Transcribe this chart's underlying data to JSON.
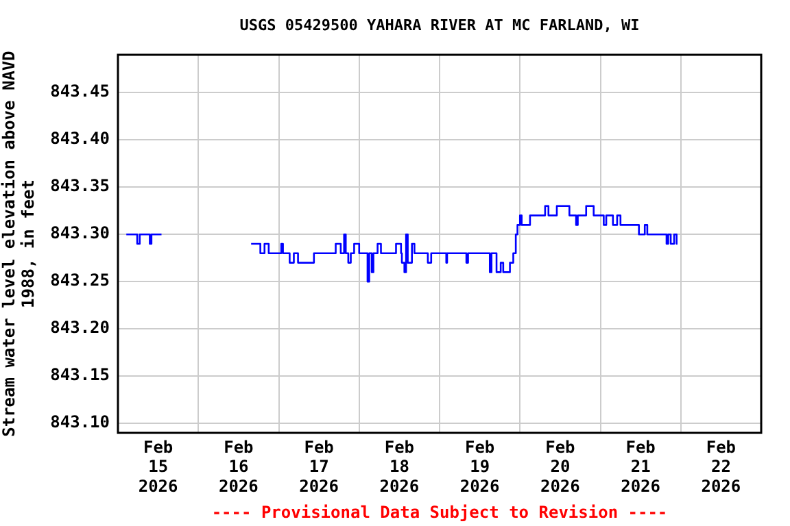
{
  "chart_data": {
    "type": "step",
    "title": "USGS 05429500 YAHARA RIVER AT MC FARLAND, WI",
    "ylabel": "Stream water level elevation above NAVD 1988, in feet",
    "annotations": [
      "---- Provisional Data Subject to Revision ----"
    ],
    "grid": true,
    "legend": false,
    "marker": "none",
    "xlim": [
      "2026-02-15T00:00",
      "2026-02-23T00:00"
    ],
    "xticks": [
      {
        "value": "2026-02-15T12:00",
        "label": "Feb\n15\n2026"
      },
      {
        "value": "2026-02-16T00:00",
        "label": null
      },
      {
        "value": "2026-02-16T12:00",
        "label": "Feb\n16\n2026"
      },
      {
        "value": "2026-02-17T00:00",
        "label": null
      },
      {
        "value": "2026-02-17T12:00",
        "label": "Feb\n17\n2026"
      },
      {
        "value": "2026-02-18T00:00",
        "label": null
      },
      {
        "value": "2026-02-18T12:00",
        "label": "Feb\n18\n2026"
      },
      {
        "value": "2026-02-19T00:00",
        "label": null
      },
      {
        "value": "2026-02-19T12:00",
        "label": "Feb\n19\n2026"
      },
      {
        "value": "2026-02-20T00:00",
        "label": null
      },
      {
        "value": "2026-02-20T12:00",
        "label": "Feb\n20\n2026"
      },
      {
        "value": "2026-02-21T00:00",
        "label": null
      },
      {
        "value": "2026-02-21T12:00",
        "label": "Feb\n21\n2026"
      },
      {
        "value": "2026-02-22T00:00",
        "label": null
      },
      {
        "value": "2026-02-22T12:00",
        "label": "Feb\n22\n2026"
      }
    ],
    "ylim": [
      843.09,
      843.49
    ],
    "yticks": [
      {
        "value": 843.1,
        "label": "843.10"
      },
      {
        "value": 843.15,
        "label": "843.15"
      },
      {
        "value": 843.2,
        "label": "843.20"
      },
      {
        "value": 843.25,
        "label": "843.25"
      },
      {
        "value": 843.3,
        "label": "843.30"
      },
      {
        "value": 843.35,
        "label": "843.35"
      },
      {
        "value": 843.4,
        "label": "843.40"
      },
      {
        "value": 843.45,
        "label": "843.45"
      }
    ],
    "series": [
      {
        "color": "#0000ff",
        "x": [
          "2026-02-15T02:30",
          "2026-02-15T05:45",
          "2026-02-15T06:30",
          "2026-02-15T09:30",
          "2026-02-15T10:00",
          "2026-02-15T13:00",
          "2026-02-16T00:00",
          "2026-02-16T15:45",
          "2026-02-16T18:30",
          "2026-02-16T19:45",
          "2026-02-16T21:00",
          "2026-02-17T00:45",
          "2026-02-17T01:15",
          "2026-02-17T03:15",
          "2026-02-17T04:30",
          "2026-02-17T05:45",
          "2026-02-17T10:30",
          "2026-02-17T17:00",
          "2026-02-17T18:30",
          "2026-02-17T19:30",
          "2026-02-17T20:00",
          "2026-02-17T20:45",
          "2026-02-17T21:30",
          "2026-02-17T22:30",
          "2026-02-18T00:00",
          "2026-02-18T02:30",
          "2026-02-18T03:00",
          "2026-02-18T03:45",
          "2026-02-18T04:15",
          "2026-02-18T05:30",
          "2026-02-18T06:30",
          "2026-02-18T11:00",
          "2026-02-18T12:30",
          "2026-02-18T12:45",
          "2026-02-18T13:30",
          "2026-02-18T14:00",
          "2026-02-18T14:30",
          "2026-02-18T15:45",
          "2026-02-18T16:30",
          "2026-02-18T20:30",
          "2026-02-18T21:30",
          "2026-02-19T02:00",
          "2026-02-19T02:15",
          "2026-02-19T08:00",
          "2026-02-19T08:30",
          "2026-02-19T15:00",
          "2026-02-19T15:30",
          "2026-02-19T17:00",
          "2026-02-19T18:15",
          "2026-02-19T19:00",
          "2026-02-19T21:00",
          "2026-02-19T22:00",
          "2026-02-19T22:45",
          "2026-02-19T23:15",
          "2026-02-20T00:00",
          "2026-02-20T00:30",
          "2026-02-20T03:00",
          "2026-02-20T07:30",
          "2026-02-20T08:30",
          "2026-02-20T11:00",
          "2026-02-20T14:45",
          "2026-02-20T16:45",
          "2026-02-20T17:15",
          "2026-02-20T19:45",
          "2026-02-20T22:00",
          "2026-02-21T01:00",
          "2026-02-21T01:45",
          "2026-02-21T03:45",
          "2026-02-21T05:00",
          "2026-02-21T06:00",
          "2026-02-21T11:30",
          "2026-02-21T13:15",
          "2026-02-21T14:00",
          "2026-02-21T16:30",
          "2026-02-21T19:45",
          "2026-02-21T20:15",
          "2026-02-21T21:00",
          "2026-02-21T22:00",
          "2026-02-21T22:45",
          "2026-02-21T23:00"
        ],
        "values": [
          843.3,
          843.29,
          843.3,
          843.29,
          843.3,
          843.3,
          null,
          843.29,
          843.28,
          843.29,
          843.28,
          843.29,
          843.28,
          843.27,
          843.28,
          843.27,
          843.28,
          843.29,
          843.28,
          843.3,
          843.28,
          843.27,
          843.28,
          843.29,
          843.28,
          843.25,
          843.28,
          843.26,
          843.28,
          843.29,
          843.28,
          843.29,
          843.28,
          843.27,
          843.26,
          843.3,
          843.27,
          843.29,
          843.28,
          843.27,
          843.28,
          843.27,
          843.28,
          843.27,
          843.28,
          843.26,
          843.28,
          843.26,
          843.27,
          843.26,
          843.27,
          843.28,
          843.3,
          843.31,
          843.32,
          843.31,
          843.32,
          843.33,
          843.32,
          843.33,
          843.32,
          843.31,
          843.32,
          843.33,
          843.32,
          843.31,
          843.32,
          843.31,
          843.32,
          843.31,
          843.3,
          843.31,
          843.3,
          843.3,
          843.29,
          843.3,
          843.29,
          843.3,
          843.29,
          843.29
        ]
      }
    ]
  }
}
